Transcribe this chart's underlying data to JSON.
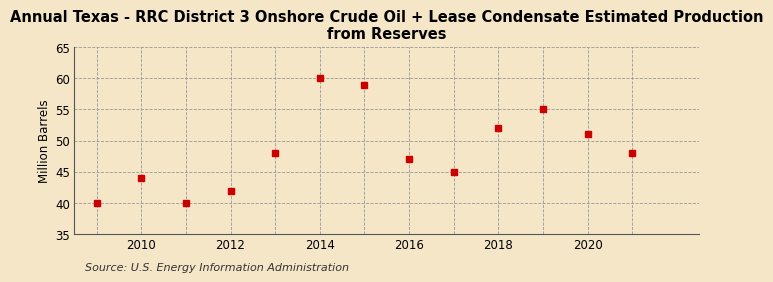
{
  "title": "Annual Texas - RRC District 3 Onshore Crude Oil + Lease Condensate Estimated Production\nfrom Reserves",
  "ylabel": "Million Barrels",
  "source": "Source: U.S. Energy Information Administration",
  "years": [
    2009,
    2010,
    2011,
    2012,
    2013,
    2014,
    2015,
    2016,
    2017,
    2018,
    2019,
    2020,
    2021
  ],
  "values": [
    40.0,
    44.0,
    40.0,
    42.0,
    48.0,
    60.0,
    59.0,
    47.0,
    45.0,
    52.0,
    55.0,
    51.0,
    48.0
  ],
  "marker_color": "#cc0000",
  "marker_size": 4,
  "ylim": [
    35,
    65
  ],
  "yticks": [
    35,
    40,
    45,
    50,
    55,
    60,
    65
  ],
  "xticks": [
    2010,
    2012,
    2014,
    2016,
    2018,
    2020
  ],
  "xlim": [
    2008.5,
    2022.5
  ],
  "bg_color": "#f5e6c8",
  "plot_bg_color": "#f5e6c8",
  "grid_color": "#999999",
  "title_fontsize": 10.5,
  "label_fontsize": 8.5,
  "tick_fontsize": 8.5,
  "source_fontsize": 8
}
